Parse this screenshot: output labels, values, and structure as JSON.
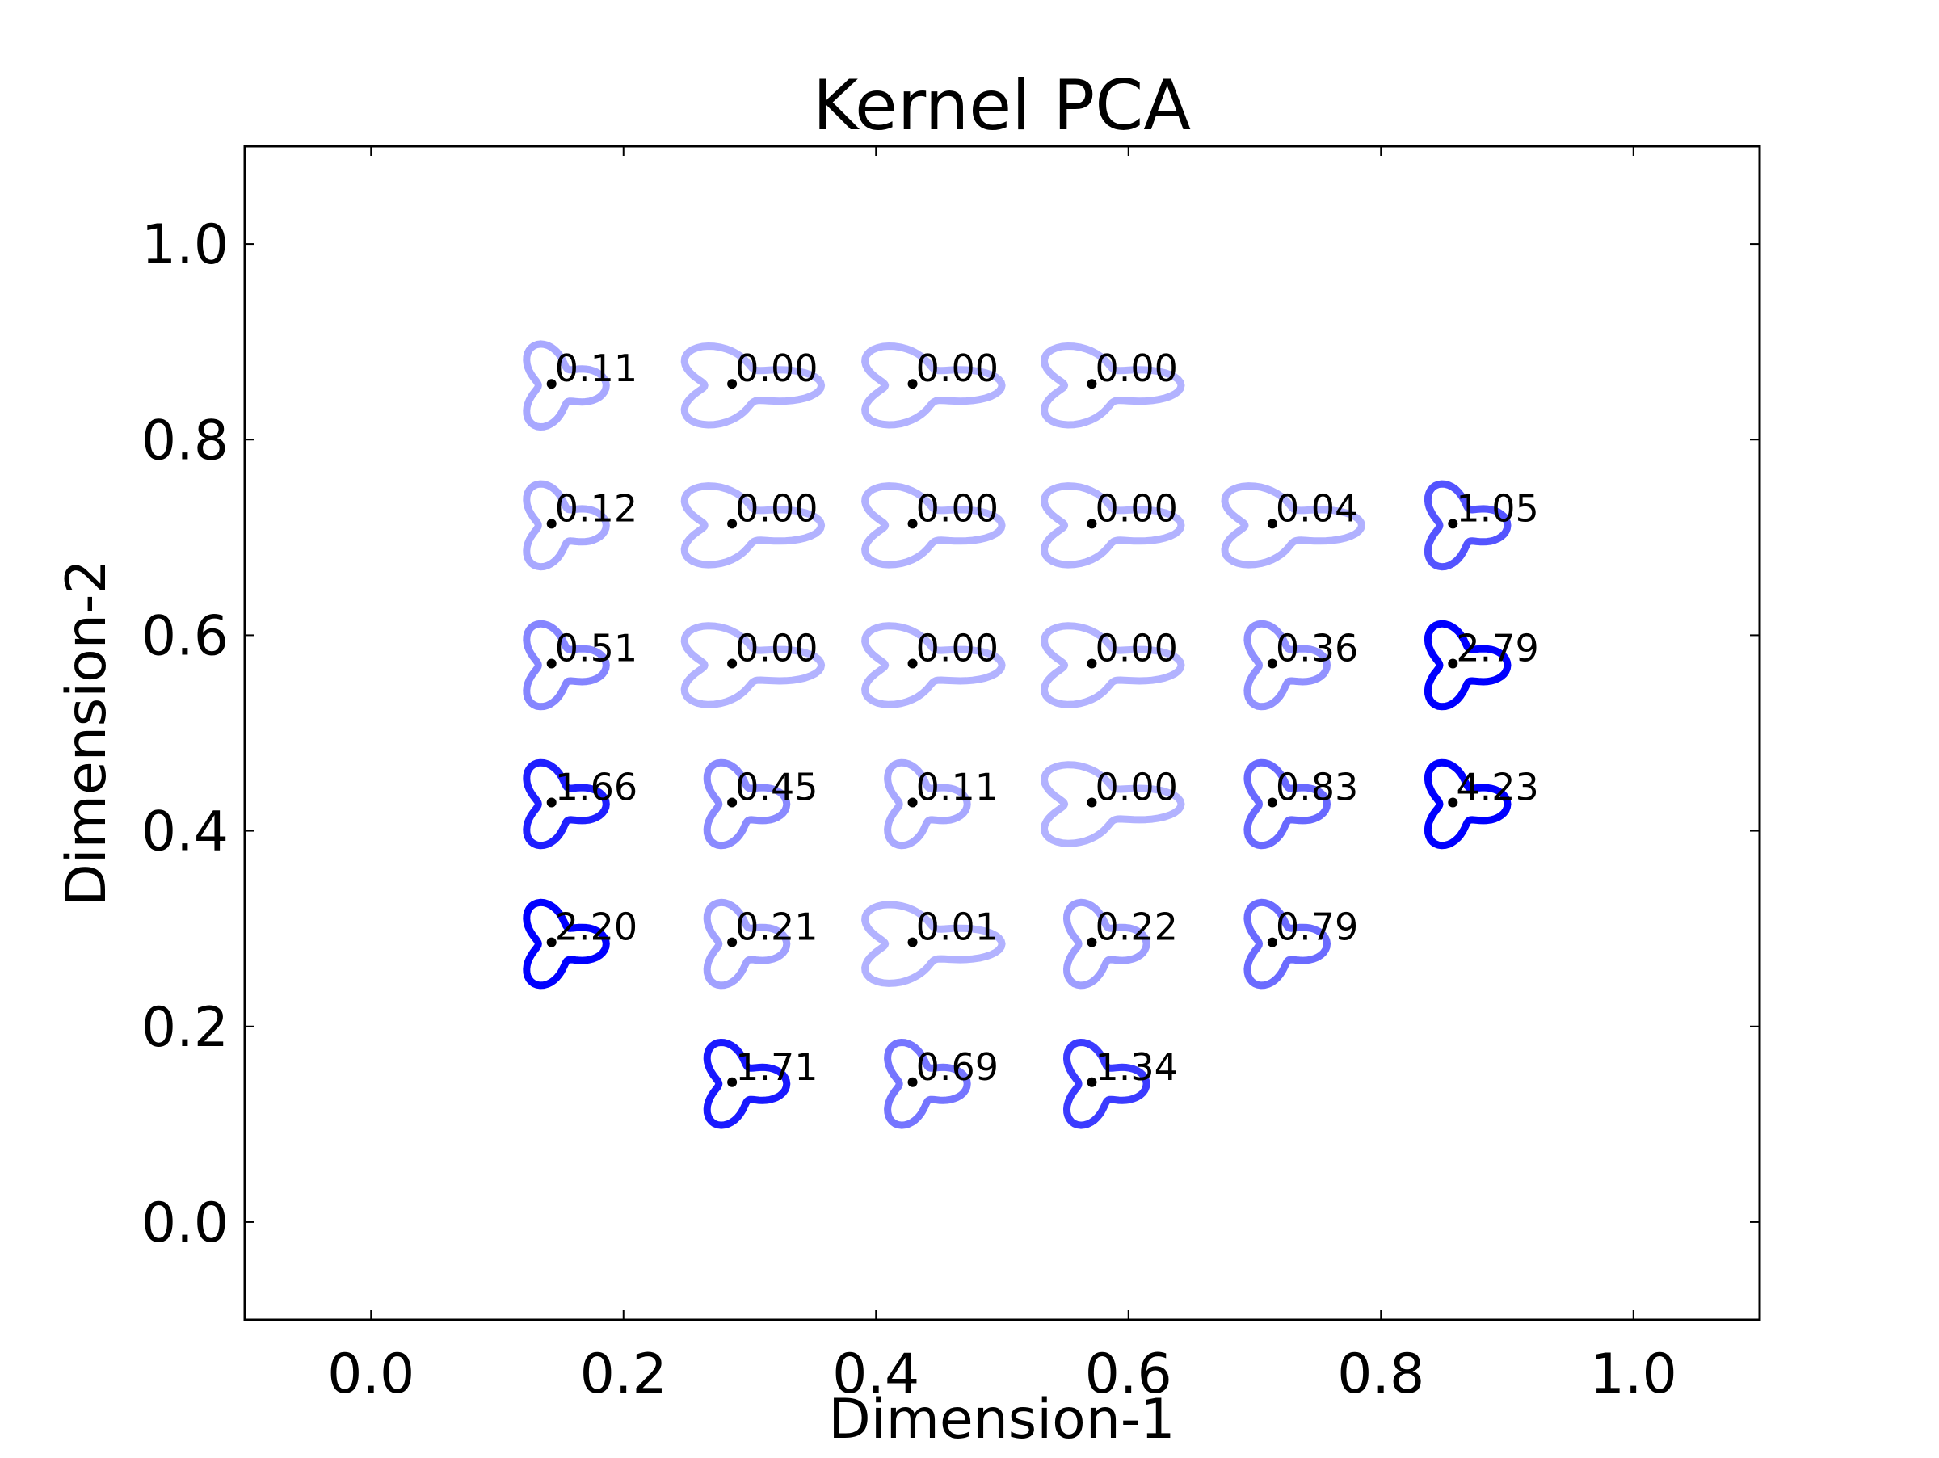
{
  "chart_data": {
    "type": "scatter",
    "title": "Kernel PCA",
    "xlabel": "Dimension-1",
    "ylabel": "Dimension-2",
    "xlim": [
      -0.1,
      1.1
    ],
    "ylim": [
      -0.1,
      1.1
    ],
    "xticks": [
      "0.0",
      "0.2",
      "0.4",
      "0.6",
      "0.8",
      "1.0"
    ],
    "yticks": [
      "0.0",
      "0.2",
      "0.4",
      "0.6",
      "0.8",
      "1.0"
    ],
    "grid": false,
    "legend": "none",
    "marker_color": "#000000",
    "shape_color": "#0000ff",
    "points": [
      {
        "x": 0.143,
        "y": 0.857,
        "label": "0.11",
        "v": 0.11
      },
      {
        "x": 0.286,
        "y": 0.857,
        "label": "0.00",
        "v": 0.0
      },
      {
        "x": 0.429,
        "y": 0.857,
        "label": "0.00",
        "v": 0.0
      },
      {
        "x": 0.571,
        "y": 0.857,
        "label": "0.00",
        "v": 0.0
      },
      {
        "x": 0.143,
        "y": 0.714,
        "label": "0.12",
        "v": 0.12
      },
      {
        "x": 0.286,
        "y": 0.714,
        "label": "0.00",
        "v": 0.0
      },
      {
        "x": 0.429,
        "y": 0.714,
        "label": "0.00",
        "v": 0.0
      },
      {
        "x": 0.571,
        "y": 0.714,
        "label": "0.00",
        "v": 0.0
      },
      {
        "x": 0.714,
        "y": 0.714,
        "label": "0.04",
        "v": 0.04
      },
      {
        "x": 0.857,
        "y": 0.714,
        "label": "1.05",
        "v": 1.05
      },
      {
        "x": 0.143,
        "y": 0.571,
        "label": "0.51",
        "v": 0.51
      },
      {
        "x": 0.286,
        "y": 0.571,
        "label": "0.00",
        "v": 0.0
      },
      {
        "x": 0.429,
        "y": 0.571,
        "label": "0.00",
        "v": 0.0
      },
      {
        "x": 0.571,
        "y": 0.571,
        "label": "0.00",
        "v": 0.0
      },
      {
        "x": 0.714,
        "y": 0.571,
        "label": "0.36",
        "v": 0.36
      },
      {
        "x": 0.857,
        "y": 0.571,
        "label": "2.79",
        "v": 2.79
      },
      {
        "x": 0.143,
        "y": 0.429,
        "label": "1.66",
        "v": 1.66
      },
      {
        "x": 0.286,
        "y": 0.429,
        "label": "0.45",
        "v": 0.45
      },
      {
        "x": 0.429,
        "y": 0.429,
        "label": "0.11",
        "v": 0.11
      },
      {
        "x": 0.571,
        "y": 0.429,
        "label": "0.00",
        "v": 0.0
      },
      {
        "x": 0.714,
        "y": 0.429,
        "label": "0.83",
        "v": 0.83
      },
      {
        "x": 0.857,
        "y": 0.429,
        "label": "4.23",
        "v": 4.23
      },
      {
        "x": 0.143,
        "y": 0.286,
        "label": "2.20",
        "v": 2.2
      },
      {
        "x": 0.286,
        "y": 0.286,
        "label": "0.21",
        "v": 0.21
      },
      {
        "x": 0.429,
        "y": 0.286,
        "label": "0.01",
        "v": 0.01
      },
      {
        "x": 0.571,
        "y": 0.286,
        "label": "0.22",
        "v": 0.22
      },
      {
        "x": 0.714,
        "y": 0.286,
        "label": "0.79",
        "v": 0.79
      },
      {
        "x": 0.286,
        "y": 0.143,
        "label": "1.71",
        "v": 1.71
      },
      {
        "x": 0.429,
        "y": 0.143,
        "label": "0.69",
        "v": 0.69
      },
      {
        "x": 0.571,
        "y": 0.143,
        "label": "1.34",
        "v": 1.34
      }
    ]
  }
}
